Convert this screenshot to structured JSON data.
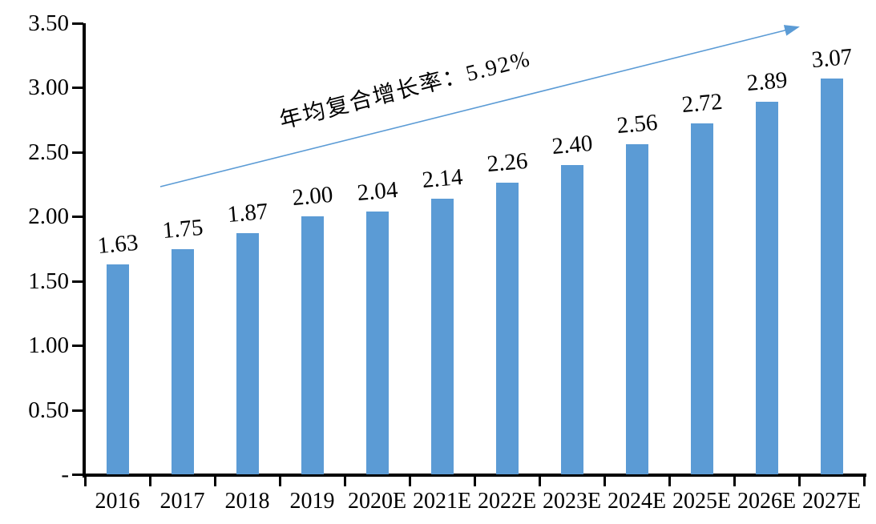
{
  "chart_data": {
    "type": "bar",
    "title": "",
    "categories": [
      "2016",
      "2017",
      "2018",
      "2019",
      "2020E",
      "2021E",
      "2022E",
      "2023E",
      "2024E",
      "2025E",
      "2026E",
      "2027E"
    ],
    "values": [
      1.63,
      1.75,
      1.87,
      2.0,
      2.04,
      2.14,
      2.26,
      2.4,
      2.56,
      2.72,
      2.89,
      3.07
    ],
    "value_labels": [
      "1.63",
      "1.75",
      "1.87",
      "2.00",
      "2.04",
      "2.14",
      "2.26",
      "2.40",
      "2.56",
      "2.72",
      "2.89",
      "3.07"
    ],
    "xlabel": "",
    "ylabel": "",
    "ylim": [
      0,
      3.5
    ],
    "grid": false,
    "legend": null,
    "y_ticks": [
      {
        "value": 0.0,
        "label": "-"
      },
      {
        "value": 0.5,
        "label": "0.50"
      },
      {
        "value": 1.0,
        "label": "1.00"
      },
      {
        "value": 1.5,
        "label": "1.50"
      },
      {
        "value": 2.0,
        "label": "2.00"
      },
      {
        "value": 2.5,
        "label": "2.50"
      },
      {
        "value": 3.0,
        "label": "3.00"
      },
      {
        "value": 3.5,
        "label": "3.50"
      }
    ],
    "annotation": {
      "text": "年均复合增长率：5.92%"
    },
    "colors": {
      "bar": "#5B9BD5",
      "arrow": "#5B9BD5",
      "axis": "#000000",
      "text": "#000000"
    }
  }
}
